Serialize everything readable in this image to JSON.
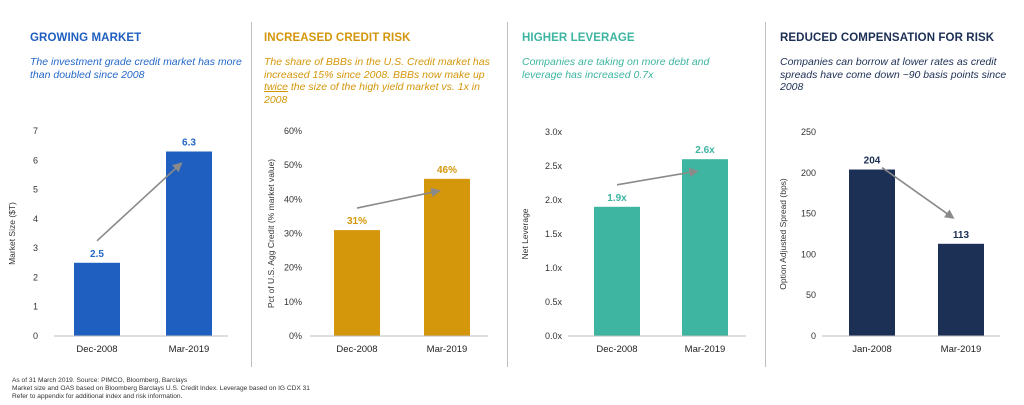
{
  "panels": [
    {
      "title": "GROWING MARKET",
      "subtitle": "The investment grade credit market has more than doubled since 2008",
      "color": "#1f5fbf",
      "label_color": "#2468c8"
    },
    {
      "title": "INCREASED CREDIT RISK",
      "subtitle_pre": "The share of BBBs in the U.S. Credit market has increased 15% since 2008. BBBs now make up ",
      "subtitle_em": "twice",
      "subtitle_post": " the size of the high yield market vs. 1x in 2008",
      "color": "#d4960a",
      "label_color": "#d4960a"
    },
    {
      "title": "HIGHER LEVERAGE",
      "subtitle": "Companies are taking on more debt and leverage has increased 0.7x",
      "color": "#3db5a0",
      "label_color": "#3db5a0"
    },
    {
      "title": "REDUCED COMPENSATION FOR RISK",
      "subtitle": "Companies can borrow at lower rates as credit spreads have come down ~90 basis points since 2008",
      "color": "#1c2f55",
      "label_color": "#1c2f55"
    }
  ],
  "chart_data": [
    {
      "type": "bar",
      "categories": [
        "Dec-2008",
        "Mar-2019"
      ],
      "values": [
        2.5,
        6.3
      ],
      "value_labels": [
        "2.5",
        "6.3"
      ],
      "ylabel": "Market Size ($T)",
      "ylim": [
        0,
        7
      ],
      "yticks": [
        0,
        1,
        2,
        3,
        4,
        5,
        6,
        7
      ],
      "ytick_labels": [
        "0",
        "1",
        "2",
        "3",
        "4",
        "5",
        "6",
        "7"
      ],
      "arrow": "up"
    },
    {
      "type": "bar",
      "categories": [
        "Dec-2008",
        "Mar-2019"
      ],
      "values": [
        31,
        46
      ],
      "value_labels": [
        "31%",
        "46%"
      ],
      "ylabel": "Pct of U.S. Agg Credit (% market value)",
      "ylim": [
        0,
        60
      ],
      "yticks": [
        0,
        10,
        20,
        30,
        40,
        50,
        60
      ],
      "ytick_labels": [
        "0%",
        "10%",
        "20%",
        "30%",
        "40%",
        "50%",
        "60%"
      ],
      "arrow": "up"
    },
    {
      "type": "bar",
      "categories": [
        "Dec-2008",
        "Mar-2019"
      ],
      "values": [
        1.9,
        2.6
      ],
      "value_labels": [
        "1.9x",
        "2.6x"
      ],
      "ylabel": "Net Leverage",
      "ylim": [
        0,
        3
      ],
      "yticks": [
        0,
        0.5,
        1,
        1.5,
        2,
        2.5,
        3
      ],
      "ytick_labels": [
        "0.0x",
        "0.5x",
        "1.0x",
        "1.5x",
        "2.0x",
        "2.5x",
        "3.0x"
      ],
      "arrow": "up"
    },
    {
      "type": "bar",
      "categories": [
        "Jan-2008",
        "Mar-2019"
      ],
      "values": [
        204,
        113
      ],
      "value_labels": [
        "204",
        "113"
      ],
      "ylabel": "Option Adjusted Spread (bps)",
      "ylim": [
        0,
        250
      ],
      "yticks": [
        0,
        50,
        100,
        150,
        200,
        250
      ],
      "ytick_labels": [
        "0",
        "50",
        "100",
        "150",
        "200",
        "250"
      ],
      "arrow": "down"
    }
  ],
  "footnote": {
    "line1": "As of 31 March 2019. Source: PIMCO, Bloomberg, Barclays",
    "line2": "Market size and OAS based on Bloomberg Barclays U.S. Credit Index. Leverage based on IG CDX 31",
    "line3": "Refer to appendix for additional index and risk information."
  }
}
